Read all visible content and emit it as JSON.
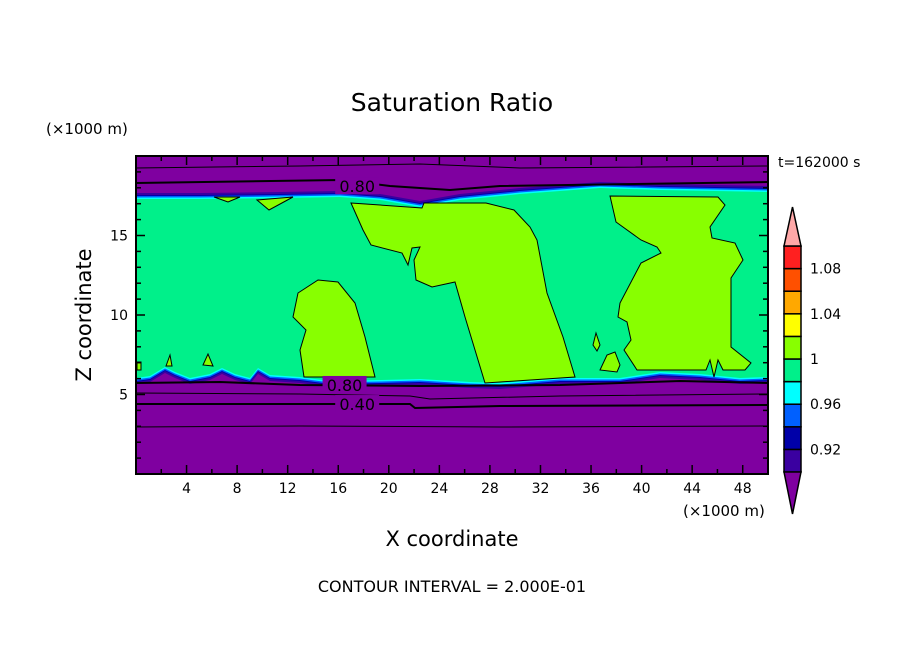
{
  "chart_data": {
    "type": "contour",
    "title": "Saturation Ratio",
    "xlabel": "X coordinate",
    "ylabel": "Z coordinate",
    "x_unit_label": "(×1000 m)",
    "y_unit_label": "(×1000 m)",
    "xlim": [
      0,
      50
    ],
    "ylim": [
      0,
      20
    ],
    "xticks": [
      4,
      8,
      12,
      16,
      20,
      24,
      28,
      32,
      36,
      40,
      44,
      48
    ],
    "yticks": [
      5,
      10,
      15
    ],
    "time_label": "t=162000 s",
    "contour_interval_text": "CONTOUR INTERVAL = 2.000E-01",
    "contour_labels": [
      {
        "text": "0.80",
        "x": 17.5,
        "z": 18.1
      },
      {
        "text": "0.80",
        "x": 16.5,
        "z": 5.6
      },
      {
        "text": "0.40",
        "x": 17.5,
        "z": 4.4
      }
    ],
    "colorbar": {
      "levels": [
        0.9,
        0.92,
        0.94,
        0.96,
        0.98,
        1.0,
        1.02,
        1.04,
        1.06,
        1.08,
        1.1
      ],
      "tick_labels": [
        "0.92",
        "0.96",
        "1",
        "1.04",
        "1.08"
      ],
      "tick_values": [
        0.92,
        0.96,
        1.0,
        1.04,
        1.08
      ],
      "colors": [
        "#3a00a0",
        "#0000a8",
        "#0060ff",
        "#00ffff",
        "#00f08a",
        "#88ff00",
        "#ffff00",
        "#ffa800",
        "#ff5000",
        "#ff2020"
      ],
      "under_color": "#7f00a0",
      "over_color": "#ffa8a8"
    },
    "regions": {
      "background_color": "#7f00a0",
      "moist_layer_z": [
        5.9,
        17.8
      ],
      "moist_layer_color": "#00f08a",
      "supersaturated_color": "#88ff00"
    }
  }
}
